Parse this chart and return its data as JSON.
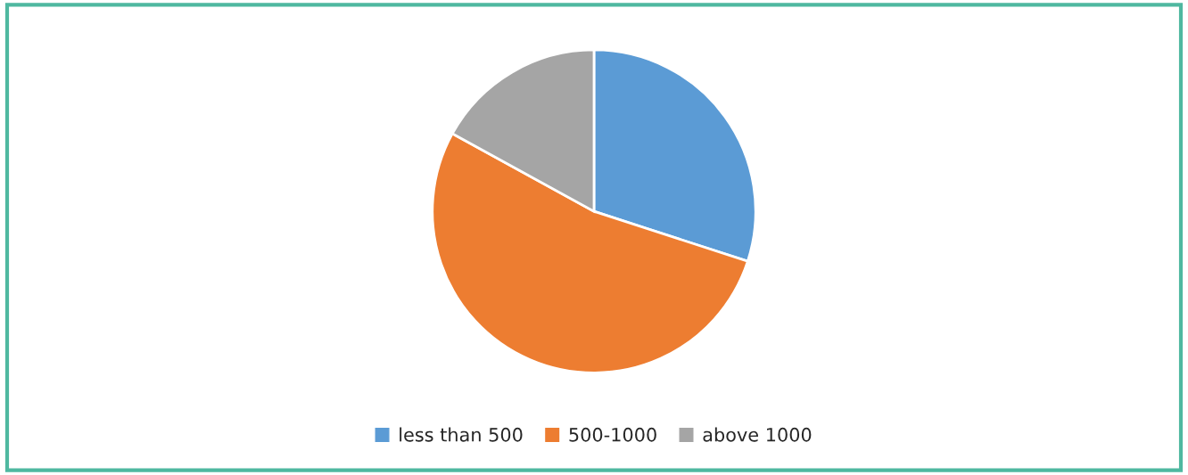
{
  "chart_data": {
    "type": "pie",
    "categories": [
      "less than 500",
      "500-1000",
      "above 1000"
    ],
    "values": [
      30,
      53,
      17
    ],
    "colors": [
      "#5b9bd5",
      "#ed7d31",
      "#a5a5a5"
    ],
    "legend": "bottom"
  }
}
